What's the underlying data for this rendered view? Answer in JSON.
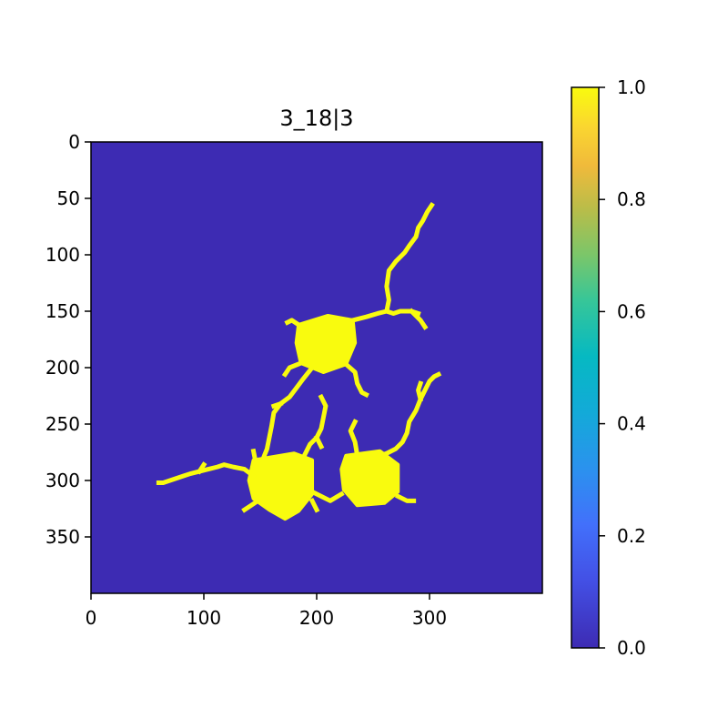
{
  "chart_data": {
    "type": "heatmap",
    "title": "3_18|3",
    "xlabel": "",
    "ylabel": "",
    "xlim": [
      0,
      400
    ],
    "ylim": [
      400,
      0
    ],
    "xticks": [
      0,
      100,
      200,
      300
    ],
    "yticks": [
      0,
      50,
      100,
      150,
      200,
      250,
      300,
      350
    ],
    "background_value": 0.0,
    "foreground_value": 1.0,
    "colormap": "parula",
    "colorbar": {
      "min": 0.0,
      "max": 1.0,
      "ticks": [
        0.0,
        0.2,
        0.4,
        0.6,
        0.8,
        1.0
      ],
      "tick_labels": [
        "0.0",
        "0.2",
        "0.4",
        "0.6",
        "0.8",
        "1.0"
      ]
    },
    "colors": {
      "background": "#3d2bb3",
      "foreground": "#f9fb0e"
    },
    "blobs": [
      {
        "name": "soma-top",
        "points": [
          [
            184,
            162
          ],
          [
            210,
            154
          ],
          [
            232,
            158
          ],
          [
            234,
            178
          ],
          [
            226,
            197
          ],
          [
            206,
            204
          ],
          [
            186,
            196
          ],
          [
            182,
            178
          ]
        ]
      },
      {
        "name": "soma-bottom-left",
        "points": [
          [
            144,
            282
          ],
          [
            180,
            276
          ],
          [
            196,
            282
          ],
          [
            196,
            312
          ],
          [
            184,
            327
          ],
          [
            172,
            334
          ],
          [
            158,
            326
          ],
          [
            144,
            316
          ],
          [
            140,
            300
          ]
        ]
      },
      {
        "name": "soma-bottom-right",
        "points": [
          [
            226,
            278
          ],
          [
            256,
            274
          ],
          [
            272,
            286
          ],
          [
            272,
            310
          ],
          [
            260,
            320
          ],
          [
            236,
            322
          ],
          [
            224,
            308
          ],
          [
            222,
            290
          ]
        ]
      }
    ],
    "branches": [
      {
        "name": "top-up-right",
        "points": [
          [
            232,
            158
          ],
          [
            244,
            155
          ],
          [
            254,
            152
          ],
          [
            262,
            150
          ],
          [
            268,
            152
          ],
          [
            274,
            150
          ],
          [
            284,
            150
          ],
          [
            290,
            152
          ]
        ]
      },
      {
        "name": "top-up-right-tip",
        "points": [
          [
            284,
            150
          ],
          [
            292,
            158
          ],
          [
            296,
            164
          ]
        ]
      },
      {
        "name": "top-up-long",
        "points": [
          [
            262,
            150
          ],
          [
            264,
            140
          ],
          [
            262,
            128
          ],
          [
            264,
            114
          ],
          [
            270,
            106
          ],
          [
            278,
            98
          ],
          [
            282,
            92
          ],
          [
            288,
            84
          ],
          [
            290,
            76
          ],
          [
            294,
            70
          ],
          [
            298,
            62
          ],
          [
            302,
            56
          ]
        ]
      },
      {
        "name": "top-up-left",
        "points": [
          [
            184,
            162
          ],
          [
            178,
            158
          ],
          [
            174,
            160
          ]
        ]
      },
      {
        "name": "top-left-down",
        "points": [
          [
            186,
            196
          ],
          [
            176,
            200
          ],
          [
            172,
            206
          ]
        ]
      },
      {
        "name": "top-right-down",
        "points": [
          [
            226,
            197
          ],
          [
            234,
            204
          ],
          [
            236,
            214
          ],
          [
            240,
            222
          ],
          [
            244,
            224
          ]
        ]
      },
      {
        "name": "top-left-long",
        "points": [
          [
            196,
            200
          ],
          [
            188,
            210
          ],
          [
            182,
            218
          ],
          [
            176,
            226
          ],
          [
            168,
            232
          ],
          [
            162,
            240
          ],
          [
            160,
            252
          ],
          [
            158,
            262
          ],
          [
            156,
            272
          ],
          [
            152,
            282
          ]
        ]
      },
      {
        "name": "top-left-side",
        "points": [
          [
            168,
            232
          ],
          [
            162,
            234
          ]
        ]
      },
      {
        "name": "middle-up",
        "points": [
          [
            186,
            284
          ],
          [
            190,
            276
          ],
          [
            194,
            268
          ],
          [
            200,
            262
          ],
          [
            204,
            254
          ],
          [
            206,
            244
          ],
          [
            208,
            234
          ],
          [
            204,
            226
          ]
        ]
      },
      {
        "name": "middle-up-side",
        "points": [
          [
            200,
            262
          ],
          [
            204,
            270
          ]
        ]
      },
      {
        "name": "left-long",
        "points": [
          [
            144,
            296
          ],
          [
            136,
            290
          ],
          [
            126,
            288
          ],
          [
            118,
            286
          ],
          [
            112,
            288
          ],
          [
            104,
            290
          ],
          [
            96,
            292
          ],
          [
            88,
            294
          ],
          [
            82,
            296
          ],
          [
            76,
            298
          ],
          [
            70,
            300
          ],
          [
            64,
            302
          ],
          [
            60,
            302
          ]
        ]
      },
      {
        "name": "left-long-side",
        "points": [
          [
            96,
            292
          ],
          [
            100,
            286
          ]
        ]
      },
      {
        "name": "left-up",
        "points": [
          [
            146,
            284
          ],
          [
            144,
            274
          ]
        ]
      },
      {
        "name": "left-down",
        "points": [
          [
            148,
            318
          ],
          [
            142,
            322
          ],
          [
            136,
            326
          ]
        ]
      },
      {
        "name": "middle-connect",
        "points": [
          [
            196,
            310
          ],
          [
            204,
            314
          ],
          [
            212,
            318
          ],
          [
            222,
            312
          ]
        ]
      },
      {
        "name": "middle-down-left",
        "points": [
          [
            196,
            318
          ],
          [
            200,
            326
          ]
        ]
      },
      {
        "name": "right-up-long",
        "points": [
          [
            256,
            278
          ],
          [
            262,
            276
          ],
          [
            270,
            272
          ],
          [
            276,
            266
          ],
          [
            280,
            258
          ],
          [
            282,
            248
          ],
          [
            288,
            238
          ],
          [
            292,
            228
          ],
          [
            296,
            220
          ],
          [
            300,
            212
          ],
          [
            304,
            208
          ],
          [
            308,
            206
          ]
        ]
      },
      {
        "name": "right-up-spur",
        "points": [
          [
            292,
            228
          ],
          [
            290,
            220
          ],
          [
            292,
            214
          ]
        ]
      },
      {
        "name": "right-up-short",
        "points": [
          [
            236,
            278
          ],
          [
            234,
            266
          ],
          [
            230,
            256
          ],
          [
            234,
            248
          ]
        ]
      },
      {
        "name": "right-down",
        "points": [
          [
            272,
            314
          ],
          [
            280,
            318
          ],
          [
            286,
            318
          ]
        ]
      }
    ]
  }
}
